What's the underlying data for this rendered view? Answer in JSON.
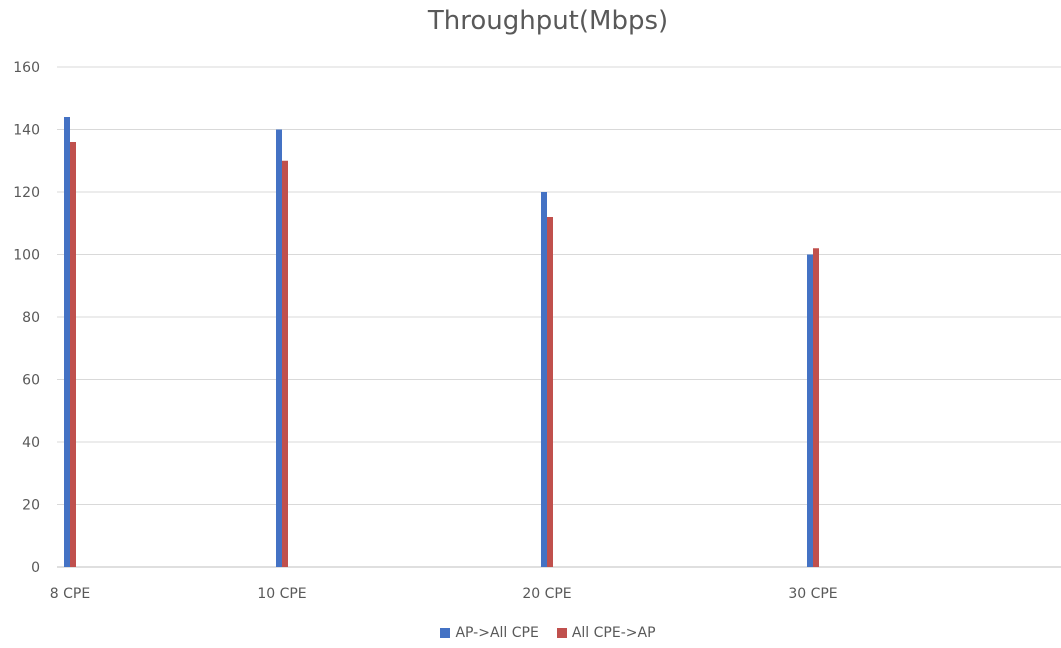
{
  "chart_data": {
    "type": "bar",
    "title": "Throughput(Mbps)",
    "xlabel": "",
    "ylabel": "",
    "categories": [
      "8 CPE",
      "10 CPE",
      "20 CPE",
      "30 CPE"
    ],
    "series": [
      {
        "name": "AP->All CPE",
        "color": "#4472C4",
        "values": [
          144,
          140,
          120,
          100
        ]
      },
      {
        "name": "All CPE->AP",
        "color": "#C0504D",
        "values": [
          136,
          130,
          112,
          102
        ]
      }
    ],
    "ylim": [
      0,
      160
    ],
    "yticks": [
      "0",
      "20",
      "40",
      "60",
      "80",
      "100",
      "120",
      "140",
      "160"
    ],
    "grid": true,
    "legend_position": "bottom"
  }
}
